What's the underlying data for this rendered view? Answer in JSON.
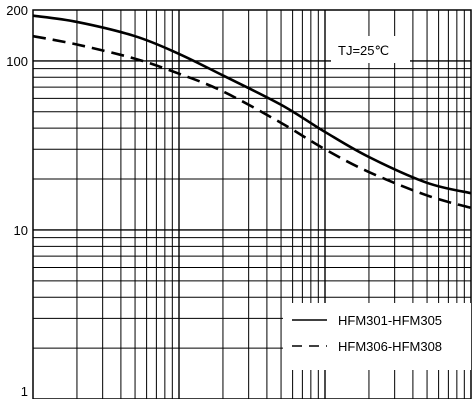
{
  "chart_data": {
    "type": "line",
    "x_scale": "log",
    "y_scale": "log",
    "xlim": [
      0.1,
      100
    ],
    "ylim": [
      1,
      200
    ],
    "grid": true,
    "y_tick_labels": [
      {
        "value": 200,
        "label": "200"
      },
      {
        "value": 100,
        "label": "100"
      },
      {
        "value": 10,
        "label": "10"
      },
      {
        "value": 1,
        "label": "1"
      }
    ],
    "annotation": "TJ=25℃",
    "legend_position": "bottom-right",
    "series": [
      {
        "name": "HFM301-HFM305",
        "line_style": "solid",
        "x": [
          0.1,
          0.2,
          0.5,
          1,
          2,
          5,
          10,
          20,
          50,
          100
        ],
        "y": [
          185,
          170,
          140,
          110,
          82,
          55,
          38,
          27,
          19,
          16.5
        ]
      },
      {
        "name": "HFM306-HFM308",
        "line_style": "dashed",
        "x": [
          0.1,
          0.2,
          0.5,
          1,
          2,
          5,
          10,
          20,
          50,
          100
        ],
        "y": [
          140,
          125,
          103,
          84,
          66,
          43,
          30,
          22,
          16,
          13.5
        ]
      }
    ]
  }
}
